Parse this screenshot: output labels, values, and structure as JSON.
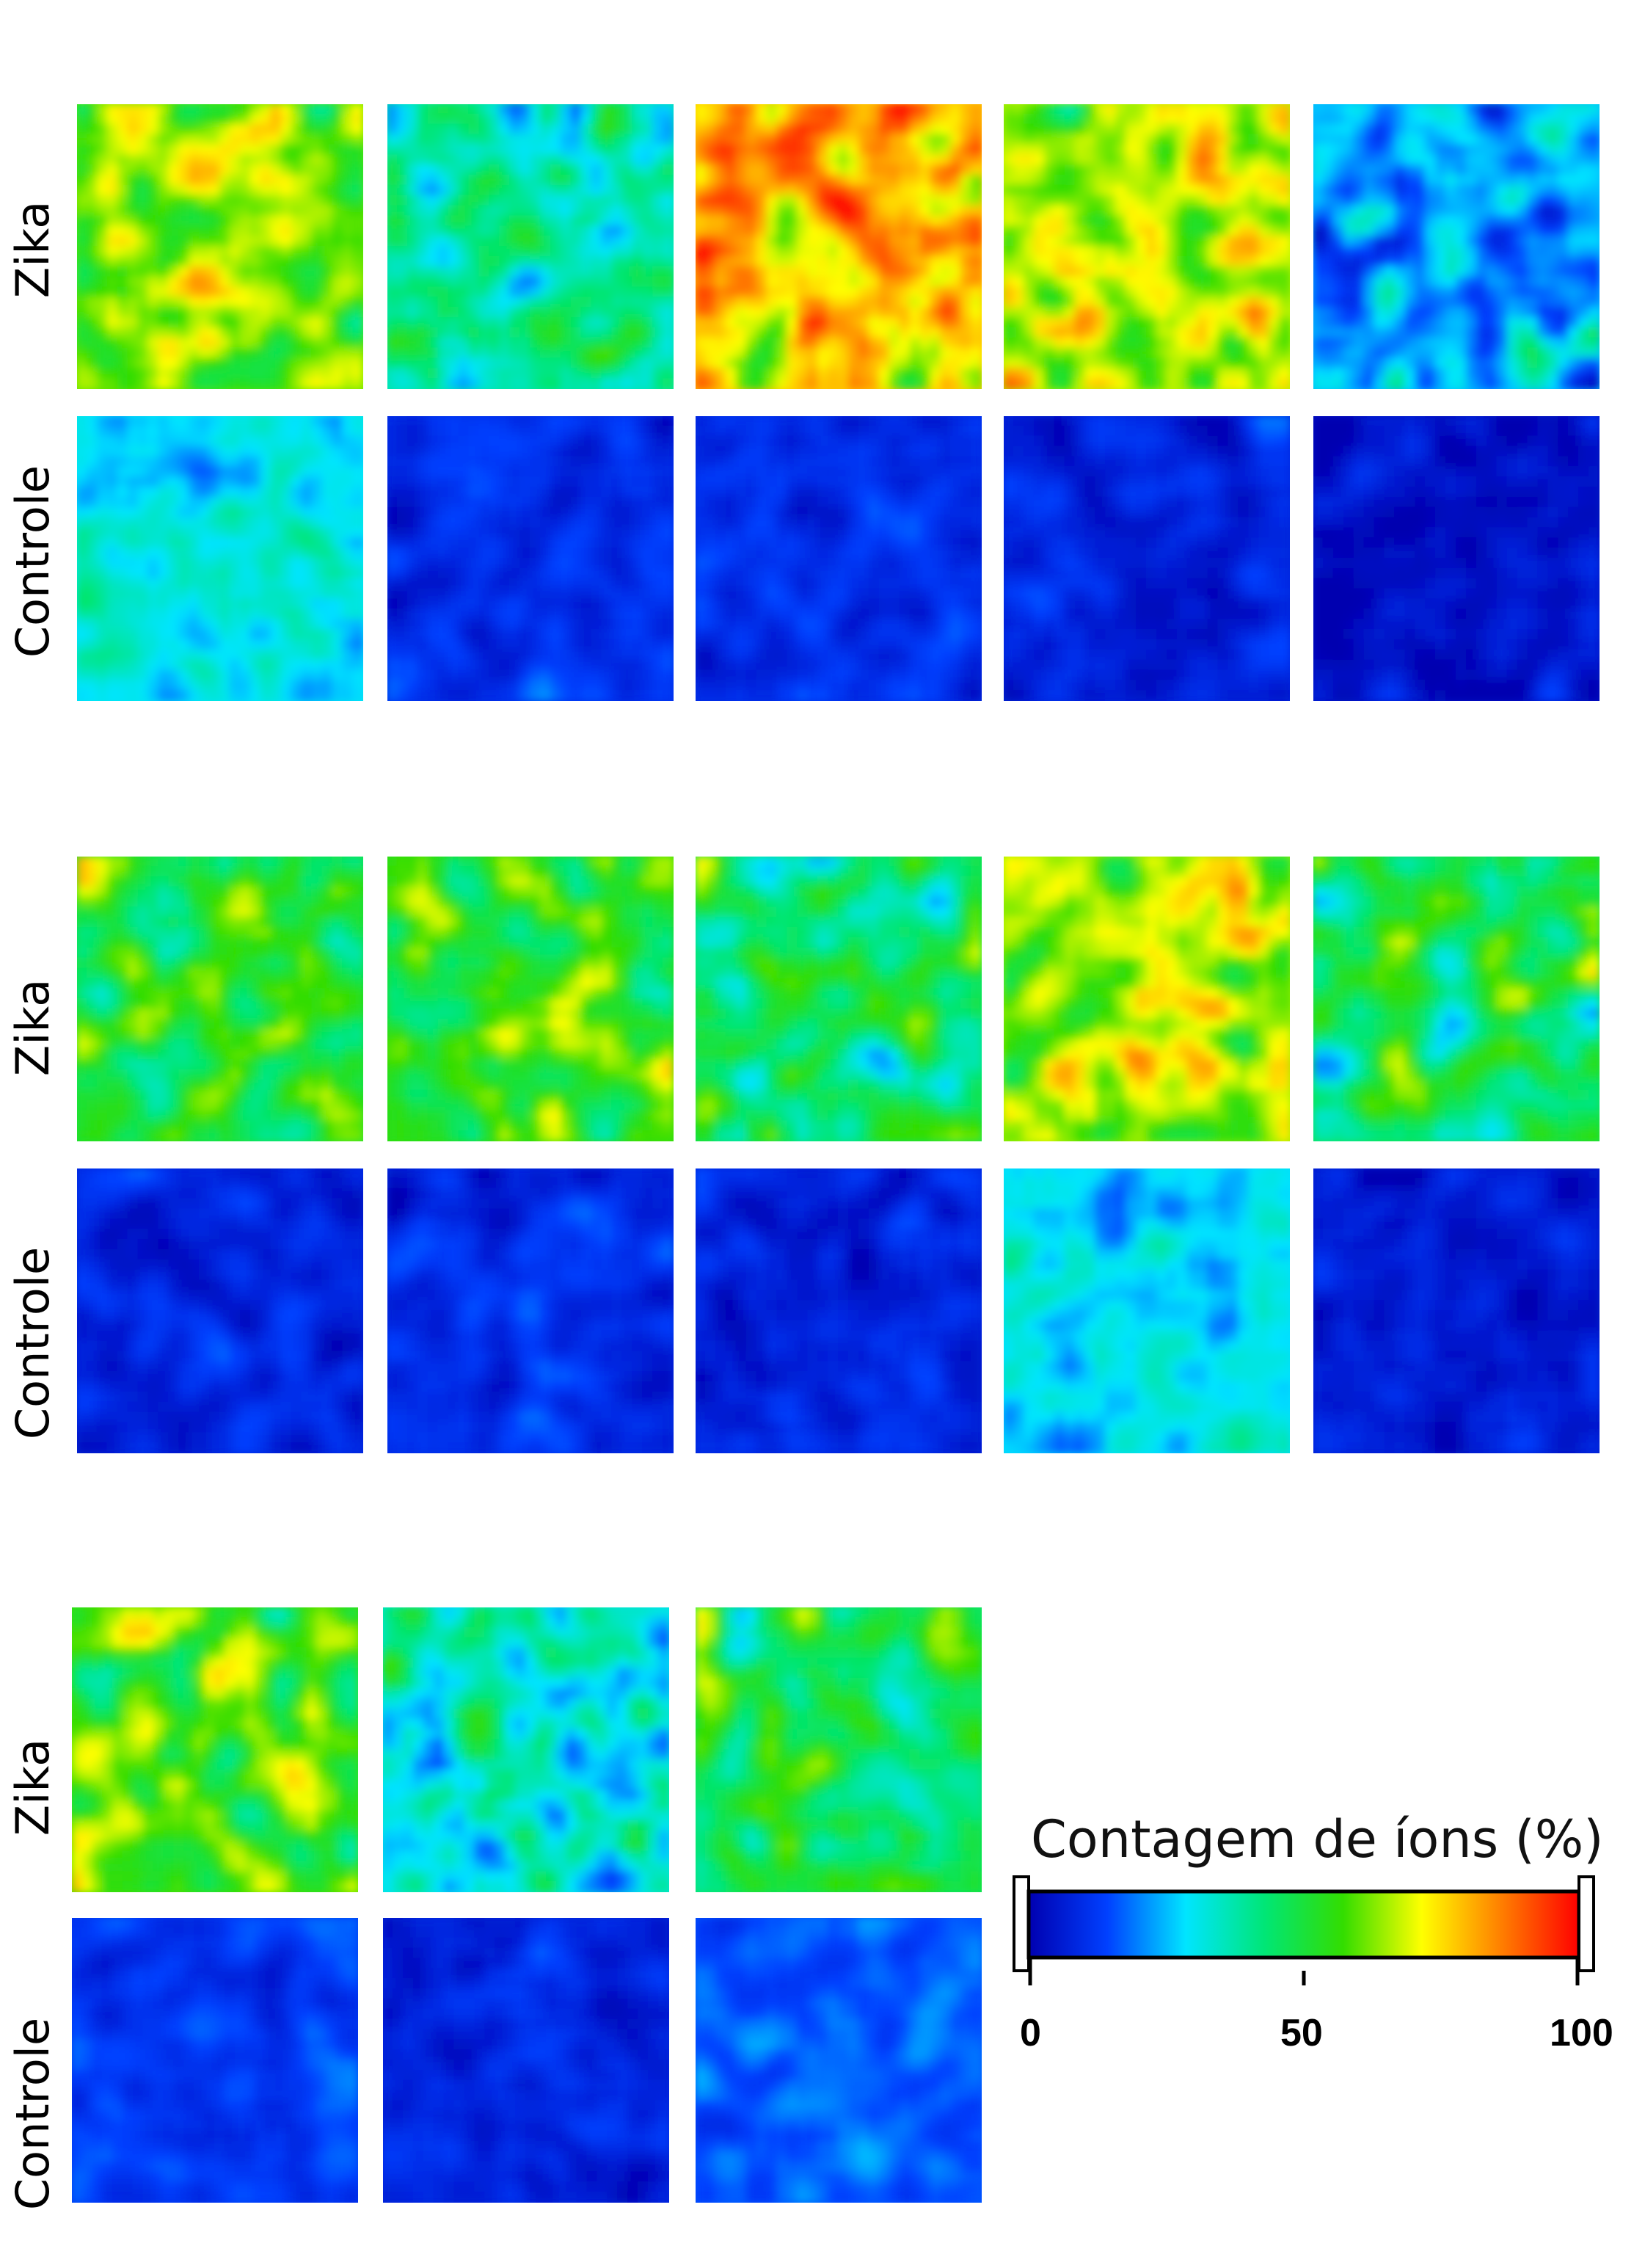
{
  "row_labels": {
    "zika": "Zika",
    "controle": "Controle"
  },
  "colorbar": {
    "title": "Contagem de íons (%)",
    "ticks": [
      "0",
      "50",
      "100"
    ],
    "range": [
      0,
      100
    ],
    "colors": [
      "#0000b0",
      "#0040ff",
      "#00e5ff",
      "#00e676",
      "#33dd00",
      "#ffff00",
      "#ff8000",
      "#ff0000"
    ]
  },
  "groups": [
    {
      "zika_mean_levels": [
        60,
        38,
        78,
        66,
        25
      ],
      "controle_mean_levels": [
        30,
        10,
        10,
        8,
        4
      ]
    },
    {
      "zika_mean_levels": [
        50,
        55,
        45,
        64,
        48
      ],
      "controle_mean_levels": [
        8,
        10,
        8,
        28,
        6
      ]
    },
    {
      "zika_mean_levels": [
        58,
        32,
        45
      ],
      "controle_mean_levels": [
        12,
        8,
        16
      ]
    }
  ]
}
